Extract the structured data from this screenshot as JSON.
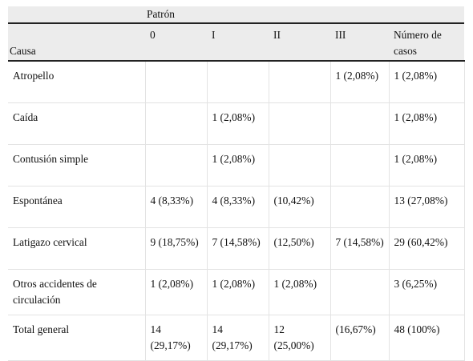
{
  "table": {
    "group_header": "Patrón",
    "row_header": "Causa",
    "columns": [
      "0",
      "I",
      "II",
      "III",
      "Número de casos"
    ],
    "rows": [
      {
        "causa": "Atropello",
        "cells": [
          "",
          "",
          "",
          "1 (2,08%)",
          "1 (2,08%)"
        ]
      },
      {
        "causa": "Caída",
        "cells": [
          "",
          "1 (2,08%)",
          "",
          "",
          "1 (2,08%)"
        ]
      },
      {
        "causa": "Contusión simple",
        "cells": [
          "",
          "1 (2,08%)",
          "",
          "",
          "1 (2,08%)"
        ]
      },
      {
        "causa": "Espontánea",
        "cells": [
          "4 (8,33%)",
          "4 (8,33%)",
          "(10,42%)",
          "",
          "13 (27,08%)"
        ]
      },
      {
        "causa": "Latigazo cervical",
        "cells": [
          "9 (18,75%)",
          "7 (14,58%)",
          "(12,50%)",
          "7 (14,58%)",
          "29 (60,42%)"
        ]
      },
      {
        "causa": "Otros accidentes de circulación",
        "cells": [
          "1 (2,08%)",
          "1 (2,08%)",
          "1 (2,08%)",
          "",
          "3 (6,25%)"
        ]
      },
      {
        "causa": "Total general",
        "cells": [
          "14 (29,17%)",
          "14 (29,17%)",
          "12 (25,00%)",
          "(16,67%)",
          "48 (100%)"
        ]
      }
    ]
  }
}
